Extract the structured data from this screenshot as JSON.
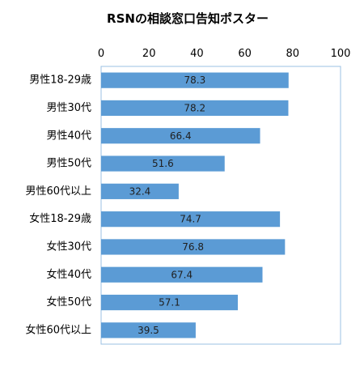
{
  "chart_data": {
    "type": "bar",
    "orientation": "horizontal",
    "title": "RSNの相談窓口告知ポスター",
    "xlabel": "",
    "ylabel": "",
    "xlim": [
      0,
      100
    ],
    "x_ticks": [
      "0",
      "20",
      "40",
      "60",
      "80",
      "100"
    ],
    "x_axis_position": "top",
    "grid": false,
    "legend": "none",
    "bar_color": "#5b9bd5",
    "categories": [
      "男性18-29歳",
      "男性30代",
      "男性40代",
      "男性50代",
      "男性60代以上",
      "女性18-29歳",
      "女性30代",
      "女性40代",
      "女性50代",
      "女性60代以上"
    ],
    "values": [
      78.3,
      78.2,
      66.4,
      51.6,
      32.4,
      74.7,
      76.8,
      67.4,
      57.1,
      39.5
    ],
    "value_labels": [
      "78.3",
      "78.2",
      "66.4",
      "51.6",
      "32.4",
      "74.7",
      "76.8",
      "67.4",
      "57.1",
      "39.5"
    ]
  }
}
